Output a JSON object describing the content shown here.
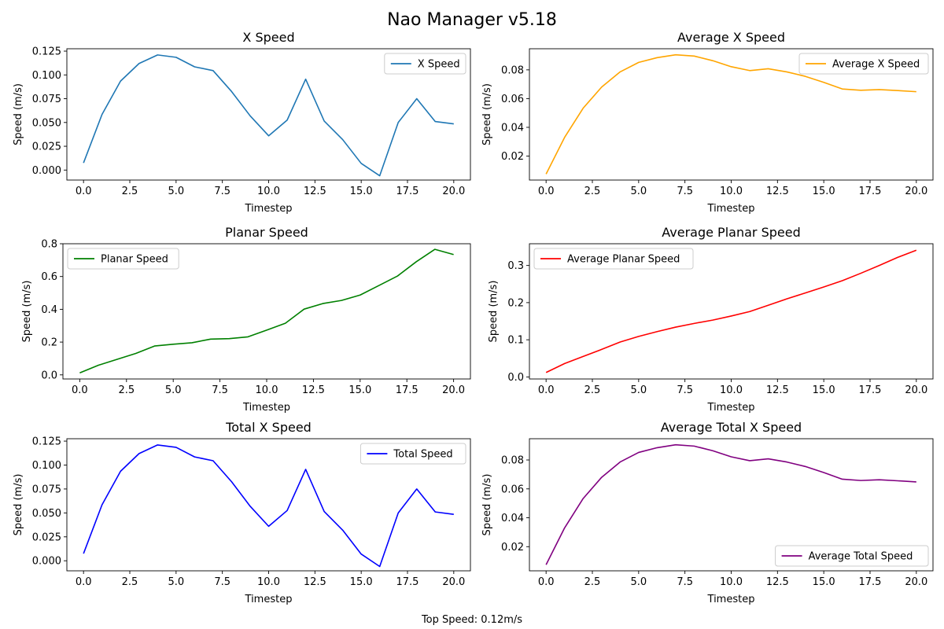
{
  "window_title": "Nao Manager v5.18",
  "footer_text": "Top Speed: 0.12m/s",
  "chart_data": [
    {
      "type": "line",
      "title": "X Speed",
      "xlabel": "Timestep",
      "ylabel": "Speed (m/s)",
      "legend_position": "upper-right",
      "xlim": [
        -0.9,
        20.9
      ],
      "ylim": [
        -0.0105,
        0.1275
      ],
      "xticks": [
        "0.0",
        "2.5",
        "5.0",
        "7.5",
        "10.0",
        "12.5",
        "15.0",
        "17.5",
        "20.0"
      ],
      "yticks": [
        "0.000",
        "0.025",
        "0.050",
        "0.075",
        "0.100",
        "0.125"
      ],
      "series": [
        {
          "name": "X Speed",
          "color": "#1f77b4",
          "x": [
            0,
            1,
            2,
            3,
            4,
            5,
            6,
            7,
            8,
            9,
            10,
            11,
            12,
            13,
            14,
            15,
            16,
            17,
            18,
            19,
            20
          ],
          "values": [
            0.0075,
            0.0585,
            0.0935,
            0.112,
            0.121,
            0.1185,
            0.1085,
            0.1045,
            0.0825,
            0.057,
            0.036,
            0.0525,
            0.0955,
            0.0515,
            0.032,
            0.007,
            -0.006,
            0.05,
            0.075,
            0.051,
            0.0485
          ]
        }
      ]
    },
    {
      "type": "line",
      "title": "Average X Speed",
      "xlabel": "Timestep",
      "ylabel": "Speed (m/s)",
      "legend_position": "upper-right",
      "xlim": [
        -0.9,
        20.9
      ],
      "ylim": [
        0.0033,
        0.0947
      ],
      "xticks": [
        "0.0",
        "2.5",
        "5.0",
        "7.5",
        "10.0",
        "12.5",
        "15.0",
        "17.5",
        "20.0"
      ],
      "yticks": [
        "0.02",
        "0.04",
        "0.06",
        "0.08"
      ],
      "series": [
        {
          "name": "Average X Speed",
          "color": "#ffa500",
          "x": [
            0,
            1,
            2,
            3,
            4,
            5,
            6,
            7,
            8,
            9,
            10,
            11,
            12,
            13,
            14,
            15,
            16,
            17,
            18,
            19,
            20
          ],
          "values": [
            0.0075,
            0.033,
            0.0533,
            0.068,
            0.0786,
            0.0852,
            0.0885,
            0.0905,
            0.0896,
            0.0864,
            0.0822,
            0.0795,
            0.0808,
            0.0786,
            0.0755,
            0.0713,
            0.0667,
            0.0658,
            0.0663,
            0.0656,
            0.0648
          ]
        }
      ]
    },
    {
      "type": "line",
      "title": "Planar Speed",
      "xlabel": "Timestep",
      "ylabel": "Speed (m/s)",
      "legend_position": "upper-left",
      "xlim": [
        -0.9,
        20.9
      ],
      "ylim": [
        -0.025,
        0.8
      ],
      "xticks": [
        "0.0",
        "2.5",
        "5.0",
        "7.5",
        "10.0",
        "12.5",
        "15.0",
        "17.5",
        "20.0"
      ],
      "yticks": [
        "0.0",
        "0.2",
        "0.4",
        "0.6",
        "0.8"
      ],
      "series": [
        {
          "name": "Planar Speed",
          "color": "#008000",
          "x": [
            0,
            1,
            2,
            3,
            4,
            5,
            6,
            7,
            8,
            9,
            10,
            11,
            12,
            13,
            14,
            15,
            16,
            17,
            18,
            19,
            20
          ],
          "values": [
            0.012,
            0.059,
            0.095,
            0.131,
            0.176,
            0.187,
            0.196,
            0.218,
            0.221,
            0.232,
            0.273,
            0.315,
            0.401,
            0.435,
            0.454,
            0.487,
            0.545,
            0.603,
            0.69,
            0.766,
            0.734
          ]
        }
      ]
    },
    {
      "type": "line",
      "title": "Average Planar Speed",
      "xlabel": "Timestep",
      "ylabel": "Speed (m/s)",
      "legend_position": "upper-left",
      "xlim": [
        -0.9,
        20.9
      ],
      "ylim": [
        -0.0055,
        0.3585
      ],
      "xticks": [
        "0.0",
        "2.5",
        "5.0",
        "7.5",
        "10.0",
        "12.5",
        "15.0",
        "17.5",
        "20.0"
      ],
      "yticks": [
        "0.0",
        "0.1",
        "0.2",
        "0.3"
      ],
      "series": [
        {
          "name": "Average Planar Speed",
          "color": "#ff0000",
          "x": [
            0,
            1,
            2,
            3,
            4,
            5,
            6,
            7,
            8,
            9,
            10,
            11,
            12,
            13,
            14,
            15,
            16,
            17,
            18,
            19,
            20
          ],
          "values": [
            0.012,
            0.036,
            0.055,
            0.074,
            0.094,
            0.109,
            0.122,
            0.134,
            0.144,
            0.153,
            0.164,
            0.176,
            0.193,
            0.21,
            0.226,
            0.242,
            0.259,
            0.279,
            0.3,
            0.322,
            0.341
          ]
        }
      ]
    },
    {
      "type": "line",
      "title": "Total X Speed",
      "xlabel": "Timestep",
      "ylabel": "Speed (m/s)",
      "legend_position": "upper-right",
      "xlim": [
        -0.9,
        20.9
      ],
      "ylim": [
        -0.0105,
        0.1275
      ],
      "xticks": [
        "0.0",
        "2.5",
        "5.0",
        "7.5",
        "10.0",
        "12.5",
        "15.0",
        "17.5",
        "20.0"
      ],
      "yticks": [
        "0.000",
        "0.025",
        "0.050",
        "0.075",
        "0.100",
        "0.125"
      ],
      "series": [
        {
          "name": "Total Speed",
          "color": "#0000ff",
          "x": [
            0,
            1,
            2,
            3,
            4,
            5,
            6,
            7,
            8,
            9,
            10,
            11,
            12,
            13,
            14,
            15,
            16,
            17,
            18,
            19,
            20
          ],
          "values": [
            0.0075,
            0.0585,
            0.0935,
            0.112,
            0.121,
            0.1185,
            0.1085,
            0.1045,
            0.0825,
            0.057,
            0.036,
            0.0525,
            0.0955,
            0.0515,
            0.032,
            0.007,
            -0.006,
            0.05,
            0.075,
            0.051,
            0.0485
          ]
        }
      ]
    },
    {
      "type": "line",
      "title": "Average Total X Speed",
      "xlabel": "Timestep",
      "ylabel": "Speed (m/s)",
      "legend_position": "lower-right",
      "xlim": [
        -0.9,
        20.9
      ],
      "ylim": [
        0.0033,
        0.0947
      ],
      "xticks": [
        "0.0",
        "2.5",
        "5.0",
        "7.5",
        "10.0",
        "12.5",
        "15.0",
        "17.5",
        "20.0"
      ],
      "yticks": [
        "0.02",
        "0.04",
        "0.06",
        "0.08"
      ],
      "series": [
        {
          "name": "Average Total Speed",
          "color": "#800080",
          "x": [
            0,
            1,
            2,
            3,
            4,
            5,
            6,
            7,
            8,
            9,
            10,
            11,
            12,
            13,
            14,
            15,
            16,
            17,
            18,
            19,
            20
          ],
          "values": [
            0.0075,
            0.033,
            0.0533,
            0.068,
            0.0786,
            0.0852,
            0.0885,
            0.0905,
            0.0896,
            0.0864,
            0.0822,
            0.0795,
            0.0808,
            0.0786,
            0.0755,
            0.0713,
            0.0667,
            0.0658,
            0.0663,
            0.0656,
            0.0648
          ]
        }
      ]
    }
  ]
}
